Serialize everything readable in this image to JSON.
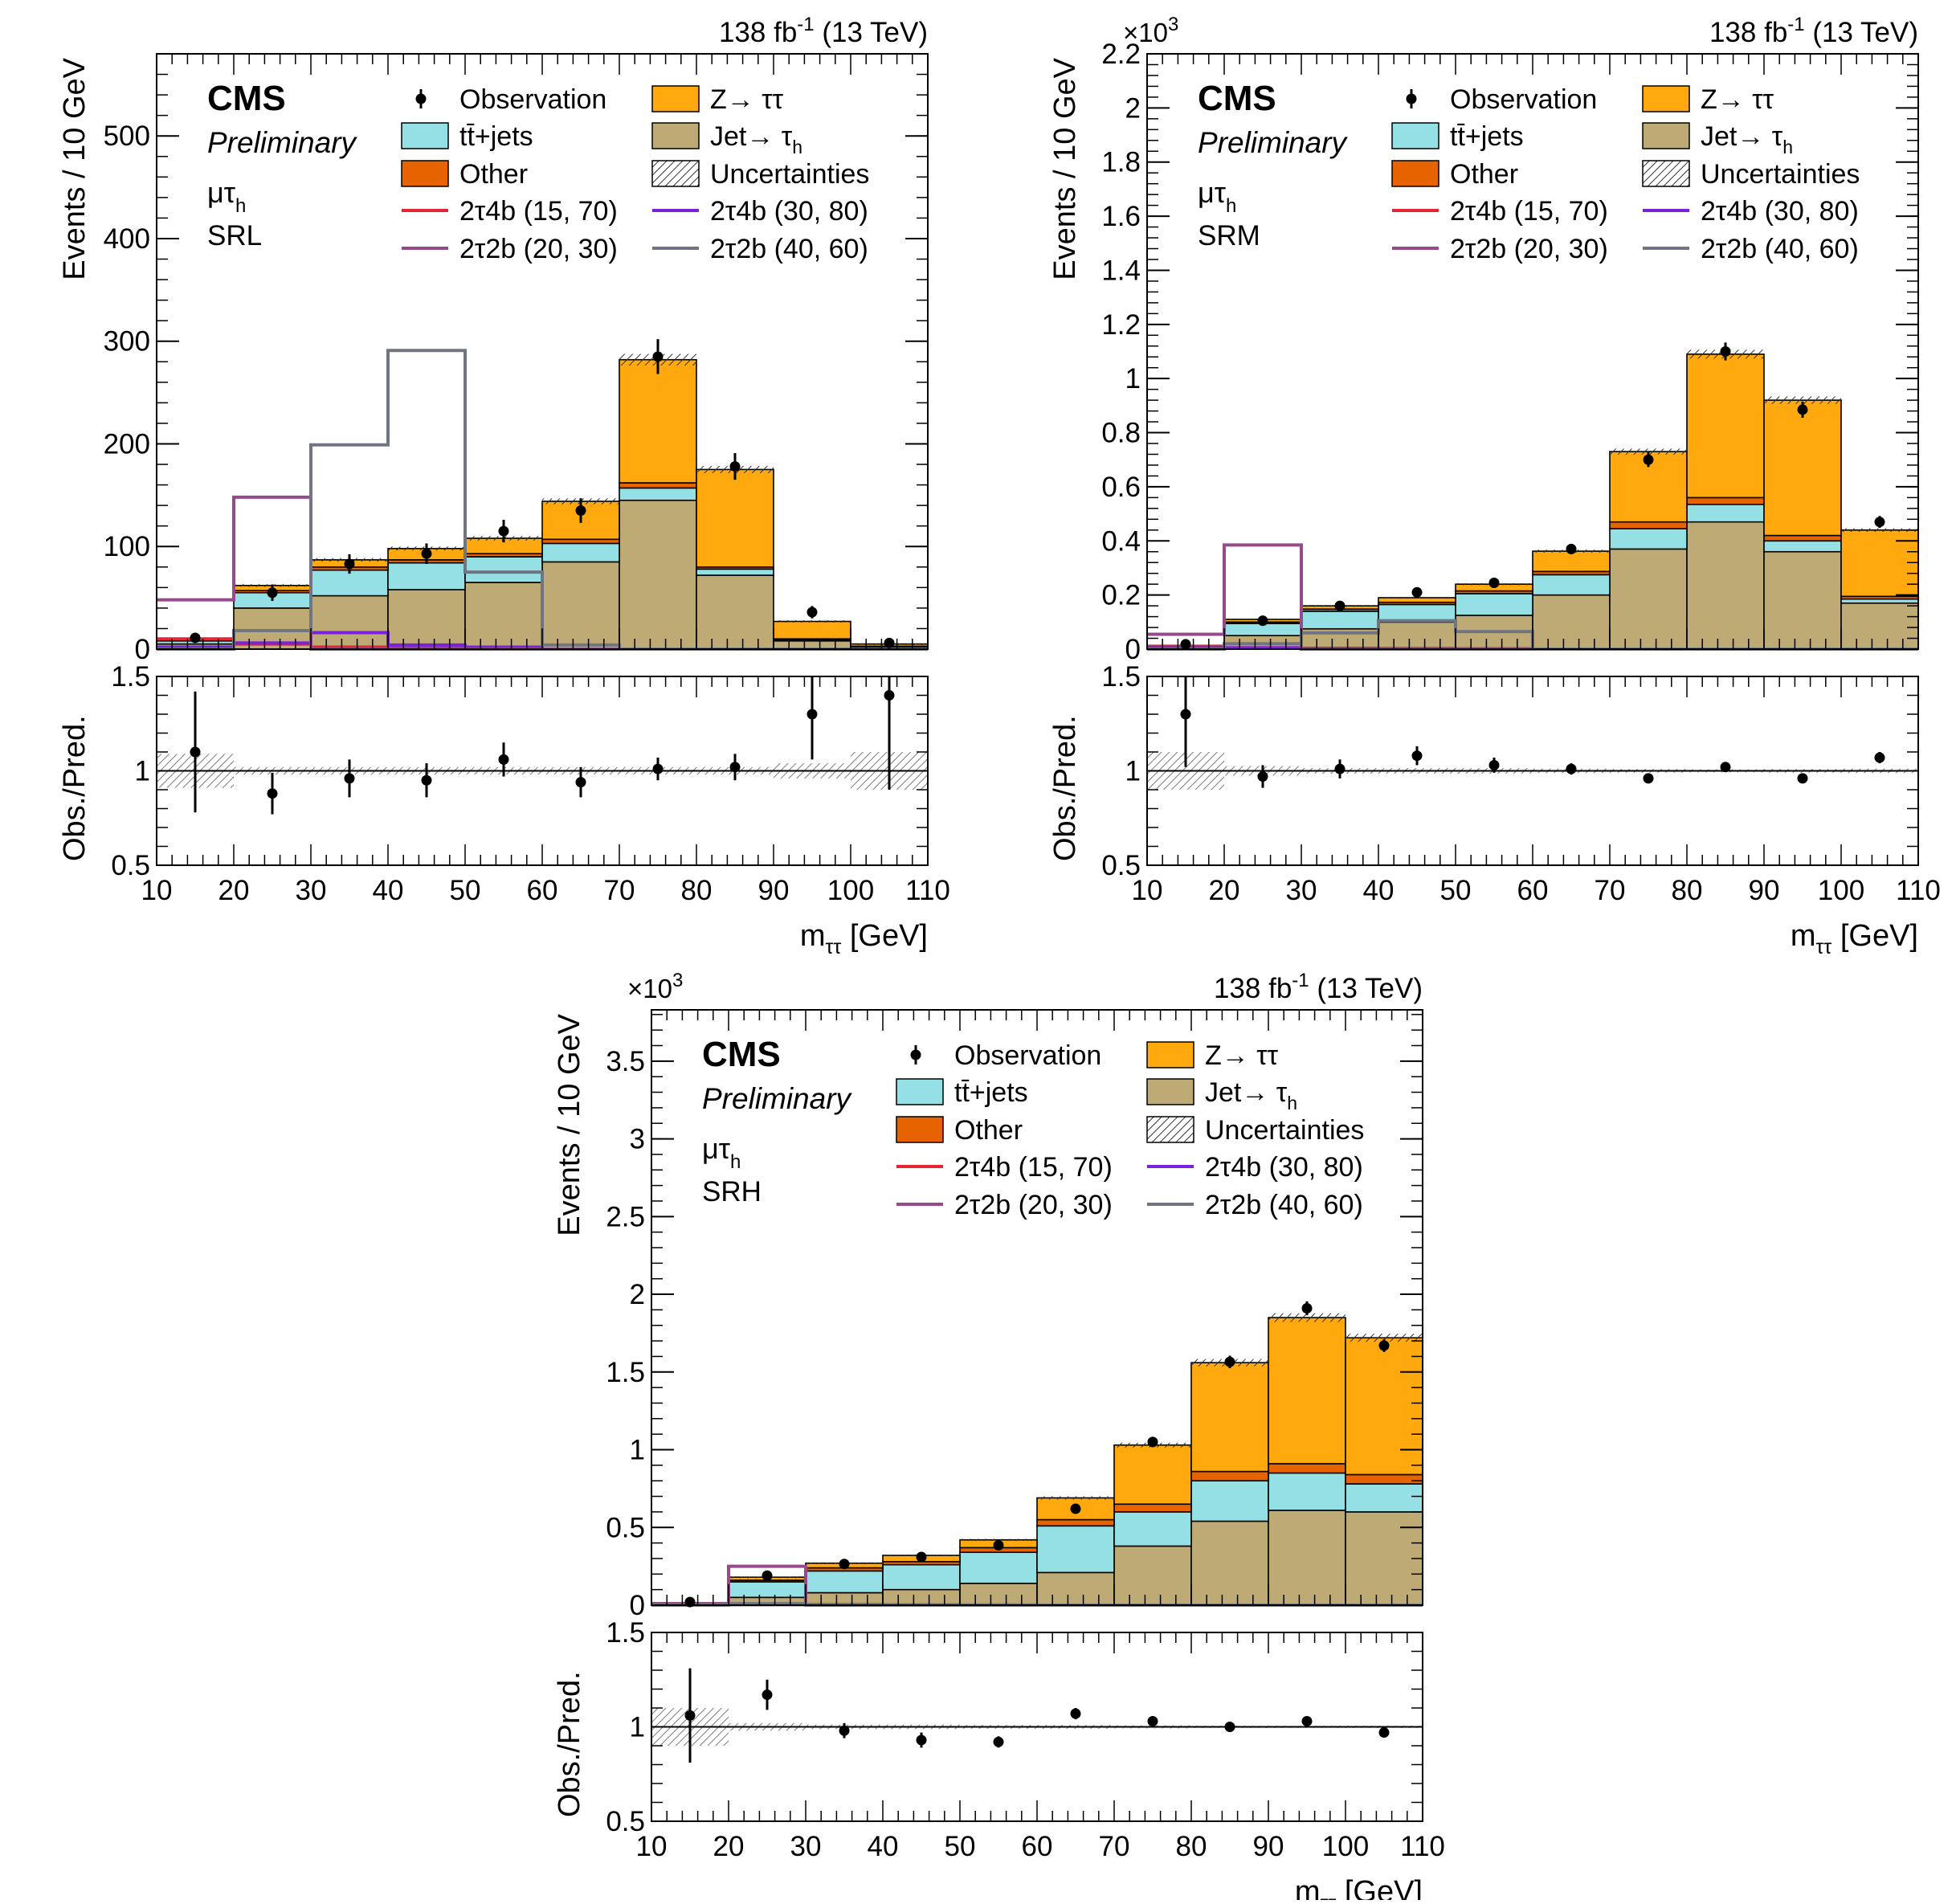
{
  "legend": {
    "cms": "CMS",
    "preliminary": "Preliminary",
    "channel": "μτ",
    "channel_sub": "h",
    "entries": [
      {
        "key": "observation",
        "label": "Observation",
        "kind": "marker"
      },
      {
        "key": "ztt",
        "label": "Z→ ττ",
        "kind": "box",
        "color": "#ffa90e"
      },
      {
        "key": "ttbar",
        "label": "tt̄+jets",
        "kind": "box",
        "color": "#94e0e4"
      },
      {
        "key": "jetfake",
        "label": "Jet→ τ",
        "sub": "h",
        "kind": "box",
        "color": "#bdaa74"
      },
      {
        "key": "other",
        "label": "Other",
        "kind": "box",
        "color": "#e76300"
      },
      {
        "key": "unc",
        "label": "Uncertainties",
        "kind": "hatch"
      },
      {
        "key": "s1",
        "label": "2τ4b (15, 70)",
        "kind": "line",
        "color": "#e42536"
      },
      {
        "key": "s2",
        "label": "2τ4b (30, 80)",
        "kind": "line",
        "color": "#7a21dd"
      },
      {
        "key": "s3",
        "label": "2τ2b (20, 30)",
        "kind": "line",
        "color": "#964a8b"
      },
      {
        "key": "s4",
        "label": "2τ2b (40, 60)",
        "kind": "line",
        "color": "#717581"
      }
    ]
  },
  "chart_data": [
    {
      "type": "bar",
      "stacked": true,
      "region": "SRL",
      "lumi": "138 fb",
      "lumi_sup": "-1",
      "energy": "(13 TeV)",
      "scale_label": "",
      "ylabel": "Events / 10 GeV",
      "xlabel": "m",
      "xlabel_sub": "ττ",
      "xlabel_unit": "[GeV]",
      "ratio_ylabel": "Obs./Pred.",
      "xlim": [
        10,
        110
      ],
      "ylim": [
        0,
        580
      ],
      "yticks": [
        0,
        100,
        200,
        300,
        400,
        500
      ],
      "yticklabels": [
        "0",
        "100",
        "200",
        "300",
        "400",
        "500"
      ],
      "ratio_ylim": [
        0.5,
        1.5
      ],
      "ratio_yticks": [
        0.5,
        1,
        1.5
      ],
      "ratio_yticklabels": [
        "0.5",
        "1",
        "1.5"
      ],
      "xticks": [
        10,
        20,
        30,
        40,
        50,
        60,
        70,
        80,
        90,
        100,
        110
      ],
      "xticklabels": [
        "10",
        "20",
        "30",
        "40",
        "50",
        "60",
        "70",
        "80",
        "90",
        "100",
        "110"
      ],
      "bin_edges": [
        10,
        20,
        30,
        40,
        50,
        60,
        70,
        80,
        90,
        100,
        110
      ],
      "stack": [
        {
          "key": "jetfake",
          "name": "Jet→ τh",
          "values": [
            5,
            40,
            52,
            58,
            65,
            85,
            145,
            72,
            8,
            2
          ]
        },
        {
          "key": "ttbar",
          "name": "tt̄+jets",
          "values": [
            3,
            15,
            25,
            26,
            25,
            18,
            12,
            6,
            1,
            0.5
          ]
        },
        {
          "key": "other",
          "name": "Other",
          "values": [
            1,
            2,
            3,
            3,
            3,
            4,
            5,
            2,
            1,
            0.3
          ]
        },
        {
          "key": "ztt",
          "name": "Z→ ττ",
          "values": [
            1,
            5,
            7,
            11,
            15,
            37,
            120,
            95,
            17,
            2.2
          ]
        }
      ],
      "observation": {
        "values": [
          11,
          55,
          83,
          93,
          115,
          135,
          285,
          178,
          36,
          6
        ],
        "errors": [
          3.5,
          8,
          9.5,
          10,
          11,
          12,
          17,
          13,
          6,
          2.5
        ]
      },
      "signals": [
        {
          "key": "s1",
          "name": "2τ4b (15, 70)",
          "values": [
            10,
            5,
            2,
            1,
            0.5,
            0,
            0,
            0,
            0,
            0
          ]
        },
        {
          "key": "s2",
          "name": "2τ4b (30, 80)",
          "values": [
            2,
            6,
            16,
            4,
            2,
            0,
            0,
            0,
            0,
            0
          ]
        },
        {
          "key": "s3",
          "name": "2τ2b (20, 30)",
          "values": [
            48,
            148,
            0,
            0,
            0,
            0,
            0,
            0,
            0,
            0
          ]
        },
        {
          "key": "s4",
          "name": "2τ2b (40, 60)",
          "values": [
            0,
            18,
            199,
            291,
            75,
            4,
            0,
            0,
            0,
            0
          ]
        }
      ],
      "ratio": {
        "values": [
          1.1,
          0.88,
          0.96,
          0.95,
          1.06,
          0.94,
          1.01,
          1.02,
          1.3,
          1.4
        ],
        "errors": [
          0.32,
          0.11,
          0.1,
          0.09,
          0.09,
          0.08,
          0.06,
          0.07,
          0.24,
          0.5
        ]
      },
      "ratio_unc": [
        0.09,
        0.02,
        0.02,
        0.02,
        0.02,
        0.02,
        0.02,
        0.02,
        0.04,
        0.1
      ]
    },
    {
      "type": "bar",
      "stacked": true,
      "region": "SRM",
      "lumi": "138 fb",
      "lumi_sup": "-1",
      "energy": "(13 TeV)",
      "scale_label": "×10",
      "scale_sup": "3",
      "ylabel": "Events / 10 GeV",
      "xlabel": "m",
      "xlabel_sub": "ττ",
      "xlabel_unit": "[GeV]",
      "ratio_ylabel": "Obs./Pred.",
      "xlim": [
        10,
        110
      ],
      "ylim": [
        0,
        2.2
      ],
      "yticks": [
        0,
        0.2,
        0.4,
        0.6,
        0.8,
        1,
        1.2,
        1.4,
        1.6,
        1.8,
        2,
        2.2
      ],
      "yticklabels": [
        "0",
        "0.2",
        "0.4",
        "0.6",
        "0.8",
        "1",
        "1.2",
        "1.4",
        "1.6",
        "1.8",
        "2",
        "2.2"
      ],
      "ratio_ylim": [
        0.5,
        1.5
      ],
      "ratio_yticks": [
        0.5,
        1,
        1.5
      ],
      "ratio_yticklabels": [
        "0.5",
        "1",
        "1.5"
      ],
      "xticks": [
        10,
        20,
        30,
        40,
        50,
        60,
        70,
        80,
        90,
        100,
        110
      ],
      "xticklabels": [
        "10",
        "20",
        "30",
        "40",
        "50",
        "60",
        "70",
        "80",
        "90",
        "100",
        "110"
      ],
      "bin_edges": [
        10,
        20,
        30,
        40,
        50,
        60,
        70,
        80,
        90,
        100,
        110
      ],
      "stack": [
        {
          "key": "jetfake",
          "name": "Jet→ τh",
          "values": [
            0.008,
            0.05,
            0.075,
            0.1,
            0.125,
            0.2,
            0.37,
            0.47,
            0.36,
            0.17
          ]
        },
        {
          "key": "ttbar",
          "name": "tt̄+jets",
          "values": [
            0.003,
            0.045,
            0.065,
            0.065,
            0.08,
            0.075,
            0.075,
            0.065,
            0.04,
            0.015
          ]
        },
        {
          "key": "other",
          "name": "Other",
          "values": [
            0.001,
            0.005,
            0.008,
            0.008,
            0.01,
            0.012,
            0.025,
            0.025,
            0.02,
            0.01
          ]
        },
        {
          "key": "ztt",
          "name": "Z→ ττ",
          "values": [
            0.002,
            0.01,
            0.012,
            0.017,
            0.025,
            0.075,
            0.26,
            0.53,
            0.5,
            0.245
          ]
        }
      ],
      "observation": {
        "values": [
          0.018,
          0.105,
          0.16,
          0.21,
          0.245,
          0.37,
          0.7,
          1.1,
          0.885,
          0.47
        ],
        "errors": [
          0.004,
          0.01,
          0.013,
          0.015,
          0.016,
          0.019,
          0.027,
          0.033,
          0.03,
          0.022
        ]
      },
      "signals": [
        {
          "key": "s1",
          "name": "2τ4b (15, 70)",
          "values": [
            0.01,
            0.005,
            0.003,
            0.002,
            0.001,
            0,
            0,
            0,
            0,
            0
          ]
        },
        {
          "key": "s2",
          "name": "2τ4b (30, 80)",
          "values": [
            0.005,
            0.005,
            0.003,
            0.002,
            0.001,
            0,
            0,
            0,
            0,
            0
          ]
        },
        {
          "key": "s3",
          "name": "2τ2b (20, 30)",
          "values": [
            0.055,
            0.385,
            0,
            0,
            0,
            0,
            0,
            0,
            0,
            0
          ]
        },
        {
          "key": "s4",
          "name": "2τ2b (40, 60)",
          "values": [
            0,
            0.02,
            0.06,
            0.105,
            0.065,
            0,
            0,
            0,
            0,
            0
          ]
        }
      ],
      "ratio": {
        "values": [
          1.3,
          0.97,
          1.01,
          1.08,
          1.03,
          1.01,
          0.96,
          1.02,
          0.96,
          1.07
        ],
        "errors": [
          0.28,
          0.06,
          0.05,
          0.05,
          0.04,
          0.03,
          0.02,
          0.02,
          0.02,
          0.03
        ]
      },
      "ratio_unc": [
        0.1,
        0.025,
        0.015,
        0.015,
        0.015,
        0.012,
        0.01,
        0.008,
        0.01,
        0.012
      ]
    },
    {
      "type": "bar",
      "stacked": true,
      "region": "SRH",
      "lumi": "138 fb",
      "lumi_sup": "-1",
      "energy": "(13 TeV)",
      "scale_label": "×10",
      "scale_sup": "3",
      "ylabel": "Events / 10 GeV",
      "xlabel": "m",
      "xlabel_sub": "ττ",
      "xlabel_unit": "[GeV]",
      "ratio_ylabel": "Obs./Pred.",
      "xlim": [
        10,
        110
      ],
      "ylim": [
        0,
        3.83
      ],
      "yticks": [
        0,
        0.5,
        1,
        1.5,
        2,
        2.5,
        3,
        3.5
      ],
      "yticklabels": [
        "0",
        "0.5",
        "1",
        "1.5",
        "2",
        "2.5",
        "3",
        "3.5"
      ],
      "ratio_ylim": [
        0.5,
        1.5
      ],
      "ratio_yticks": [
        0.5,
        1,
        1.5
      ],
      "ratio_yticklabels": [
        "0.5",
        "1",
        "1.5"
      ],
      "xticks": [
        10,
        20,
        30,
        40,
        50,
        60,
        70,
        80,
        90,
        100,
        110
      ],
      "xticklabels": [
        "10",
        "20",
        "30",
        "40",
        "50",
        "60",
        "70",
        "80",
        "90",
        "100",
        "110"
      ],
      "bin_edges": [
        10,
        20,
        30,
        40,
        50,
        60,
        70,
        80,
        90,
        100,
        110
      ],
      "stack": [
        {
          "key": "jetfake",
          "name": "Jet→ τh",
          "values": [
            0.005,
            0.05,
            0.08,
            0.1,
            0.14,
            0.21,
            0.38,
            0.54,
            0.61,
            0.6
          ]
        },
        {
          "key": "ttbar",
          "name": "tt̄+jets",
          "values": [
            0.005,
            0.1,
            0.14,
            0.16,
            0.2,
            0.3,
            0.22,
            0.26,
            0.24,
            0.18
          ]
        },
        {
          "key": "other",
          "name": "Other",
          "values": [
            0.002,
            0.01,
            0.02,
            0.02,
            0.03,
            0.04,
            0.05,
            0.06,
            0.06,
            0.06
          ]
        },
        {
          "key": "ztt",
          "name": "Z→ ττ",
          "values": [
            0.003,
            0.02,
            0.03,
            0.04,
            0.05,
            0.14,
            0.38,
            0.7,
            0.94,
            0.88
          ]
        }
      ],
      "observation": {
        "values": [
          0.02,
          0.19,
          0.265,
          0.31,
          0.385,
          0.62,
          1.05,
          1.565,
          1.91,
          1.67
        ],
        "errors": [
          0.005,
          0.015,
          0.017,
          0.018,
          0.02,
          0.025,
          0.033,
          0.04,
          0.045,
          0.041
        ]
      },
      "signals": [
        {
          "key": "s1",
          "name": "2τ4b (15, 70)",
          "values": [
            0.005,
            0.003,
            0.002,
            0.001,
            0,
            0,
            0,
            0,
            0,
            0
          ]
        },
        {
          "key": "s2",
          "name": "2τ4b (30, 80)",
          "values": [
            0.005,
            0.004,
            0.003,
            0.002,
            0,
            0,
            0,
            0,
            0,
            0
          ]
        },
        {
          "key": "s3",
          "name": "2τ2b (20, 30)",
          "values": [
            0.01,
            0.25,
            0,
            0,
            0,
            0,
            0,
            0,
            0,
            0
          ]
        },
        {
          "key": "s4",
          "name": "2τ2b (40, 60)",
          "values": [
            0,
            0.01,
            0.005,
            0.002,
            0.001,
            0,
            0,
            0,
            0,
            0
          ]
        }
      ],
      "ratio": {
        "values": [
          1.06,
          1.17,
          0.98,
          0.93,
          0.92,
          1.07,
          1.03,
          1.0,
          1.03,
          0.97
        ],
        "errors": [
          0.25,
          0.08,
          0.04,
          0.04,
          0.03,
          0.03,
          0.02,
          0.015,
          0.015,
          0.015
        ]
      },
      "ratio_unc": [
        0.1,
        0.02,
        0.012,
        0.012,
        0.01,
        0.01,
        0.008,
        0.006,
        0.006,
        0.006
      ]
    }
  ]
}
